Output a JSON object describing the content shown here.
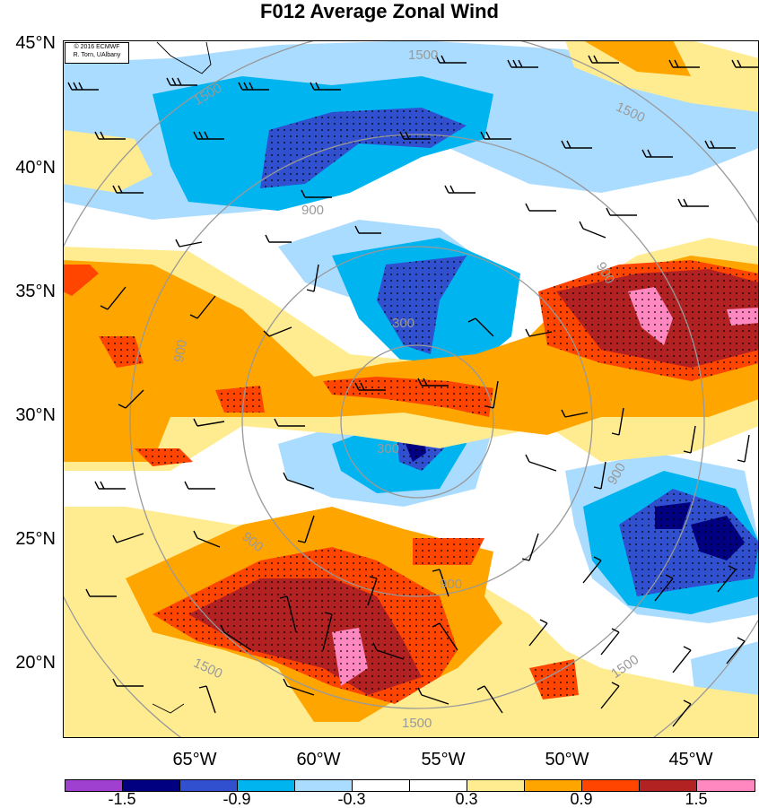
{
  "title": "F012 Average Zonal Wind",
  "credit": {
    "line1": "© 2016 ECMWF",
    "line2": "R. Torn, UAlbany"
  },
  "axes": {
    "lat_labels": [
      "45°N",
      "40°N",
      "35°N",
      "30°N",
      "25°N",
      "20°N"
    ],
    "lon_labels": [
      "65°W",
      "60°W",
      "55°W",
      "50°W",
      "45°W"
    ]
  },
  "contours": {
    "color": "#999999",
    "labels": [
      "300",
      "300",
      "900",
      "900",
      "900",
      "900",
      "900",
      "900",
      "1500",
      "1500",
      "1500",
      "1500",
      "1500",
      "1500"
    ]
  },
  "colorbar": {
    "colors": [
      "#a040d0",
      "#000080",
      "#3050d0",
      "#00b4f0",
      "#aadcff",
      "#ffffff",
      "#ffffff",
      "#ffec90",
      "#ffa500",
      "#ff4500",
      "#b22222",
      "#ff88c0"
    ],
    "tick_labels": [
      "-1.5",
      "-0.9",
      "-0.3",
      "0.3",
      "0.9",
      "1.5"
    ]
  },
  "shading_colors": {
    "dark_blue": "#000080",
    "blue": "#3050d0",
    "cyan": "#00b4f0",
    "light_blue": "#aadcff",
    "yellow": "#ffec90",
    "orange": "#ffa500",
    "red_orange": "#ff4500",
    "dark_red": "#b22222",
    "pink": "#ff88c0"
  }
}
